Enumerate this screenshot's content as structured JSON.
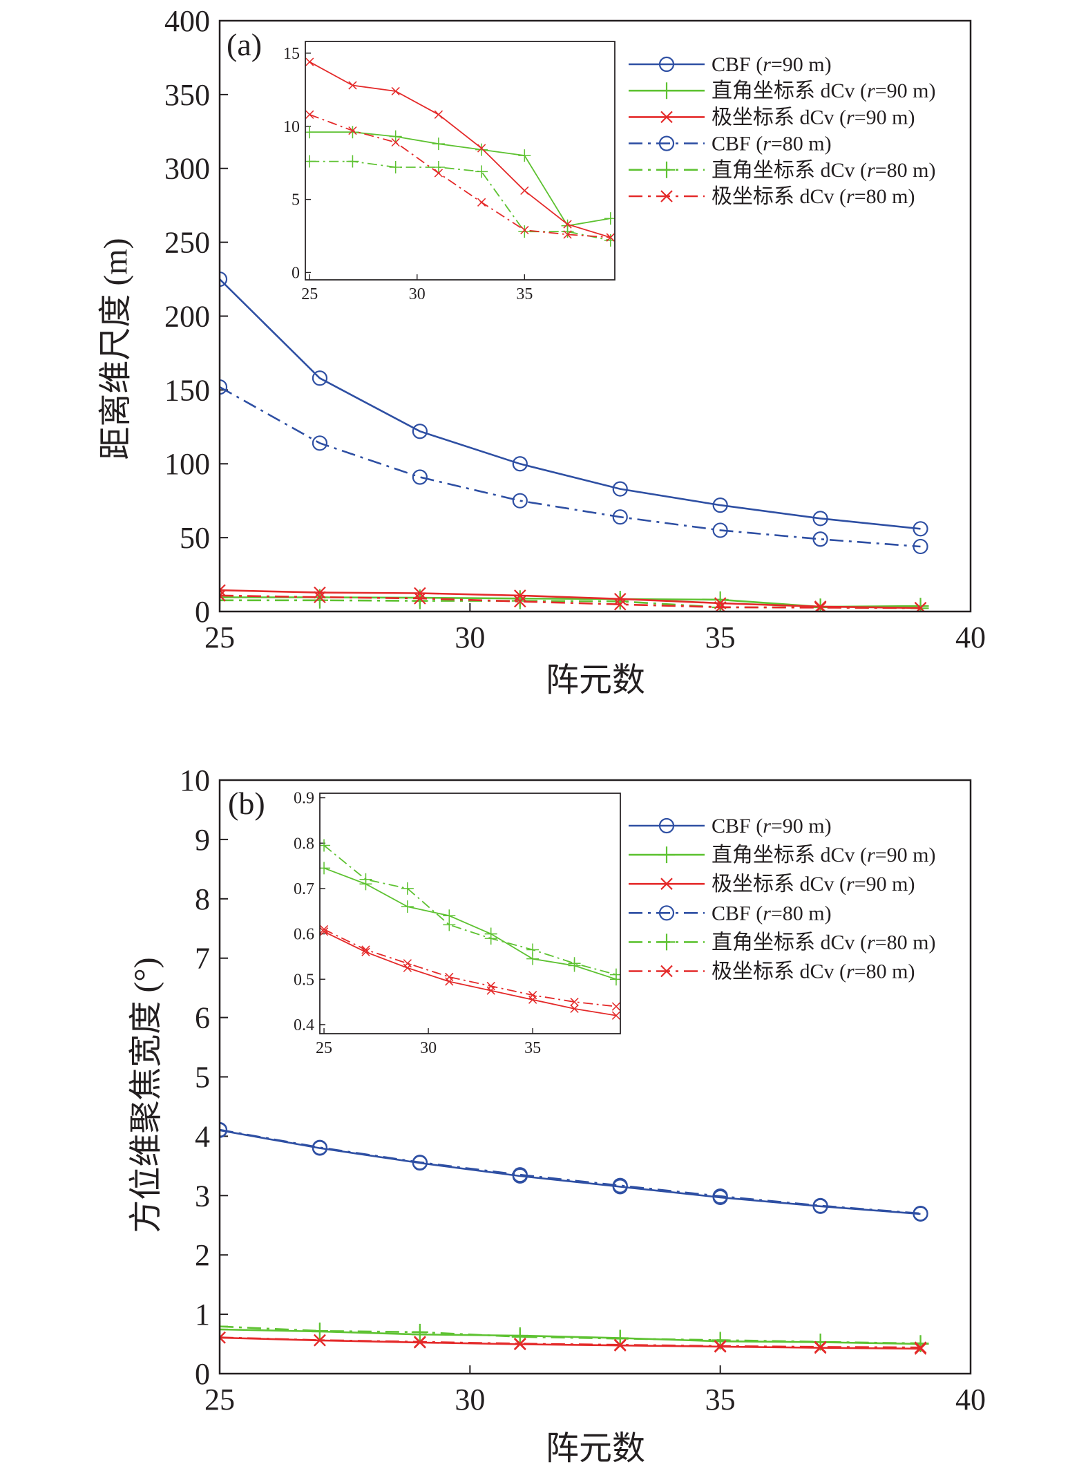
{
  "colors": {
    "blue": "#2e4fa3",
    "green": "#5ec232",
    "red": "#e42a2a",
    "axis": "#231f20"
  },
  "markers": {
    "CBF": "circle-icon",
    "rect": "plus-icon",
    "polar": "cross-icon"
  },
  "chart_data": [
    {
      "id": "a",
      "type": "line",
      "panel_label": "(a)",
      "xlabel": "阵元数",
      "ylabel": "距离维尺度 (m)",
      "xlim": [
        25,
        40
      ],
      "ylim": [
        0,
        400
      ],
      "xticks": [
        "25",
        "30",
        "35",
        "40"
      ],
      "yticks": [
        "0",
        "50",
        "100",
        "150",
        "200",
        "250",
        "300",
        "350",
        "400"
      ],
      "x": [
        25,
        27,
        29,
        31,
        33,
        35,
        37,
        39
      ],
      "legend_position": "top-right",
      "series": [
        {
          "name": "CBF (r=90 m)",
          "name_pre": "CBF (",
          "name_r": "r",
          "name_post": "=90 m)",
          "key": "blue",
          "marker": "circle",
          "dash": "solid",
          "values": [
            225,
            158,
            122,
            100,
            83,
            72,
            63,
            56
          ]
        },
        {
          "name": "直角坐标系 dCv (r=90 m)",
          "name_pre": "直角坐标系 dCv (",
          "name_r": "r",
          "name_post": "=90 m)",
          "key": "green",
          "marker": "plus",
          "dash": "solid",
          "values": [
            9.6,
            9.6,
            9.3,
            8.8,
            8.4,
            8.0,
            3.2,
            3.7
          ]
        },
        {
          "name": "极坐标系 dCv (r=90 m)",
          "name_pre": "极坐标系 dCv (",
          "name_r": "r",
          "name_post": "=90 m)",
          "key": "red",
          "marker": "cross",
          "dash": "solid",
          "values": [
            14.4,
            12.8,
            12.4,
            10.8,
            8.5,
            5.6,
            3.3,
            2.4
          ]
        },
        {
          "name": "CBF (r=80 m)",
          "name_pre": "CBF (",
          "name_r": "r",
          "name_post": "=80 m)",
          "key": "blue",
          "marker": "circle",
          "dash": "dashdot",
          "values": [
            152,
            114,
            91,
            75,
            64,
            55,
            49,
            44
          ]
        },
        {
          "name": "直角坐标系 dCv (r=80 m)",
          "name_pre": "直角坐标系 dCv (",
          "name_r": "r",
          "name_post": "=80 m)",
          "key": "green",
          "marker": "plus",
          "dash": "dashdot",
          "values": [
            7.6,
            7.6,
            7.2,
            7.2,
            6.9,
            2.8,
            2.8,
            2.2
          ]
        },
        {
          "name": "极坐标系 dCv (r=80 m)",
          "name_pre": "极坐标系 dCv (",
          "name_r": "r",
          "name_post": "=80 m)",
          "key": "red",
          "marker": "cross",
          "dash": "dashdot",
          "values": [
            10.8,
            9.7,
            8.9,
            6.8,
            4.8,
            2.9,
            2.6,
            2.4
          ]
        }
      ],
      "inset": {
        "xlim": [
          24.8,
          39.2
        ],
        "ylim": [
          -0.5,
          15.8
        ],
        "xticks": [
          "25",
          "30",
          "35"
        ],
        "yticks": [
          "0",
          "5",
          "10",
          "15"
        ]
      }
    },
    {
      "id": "b",
      "type": "line",
      "panel_label": "(b)",
      "xlabel": "阵元数",
      "ylabel": "方位维聚焦宽度 (°)",
      "xlim": [
        25,
        40
      ],
      "ylim": [
        0,
        10
      ],
      "xticks": [
        "25",
        "30",
        "35",
        "40"
      ],
      "yticks": [
        "0",
        "1",
        "2",
        "3",
        "4",
        "5",
        "6",
        "7",
        "8",
        "9",
        "10"
      ],
      "x": [
        25,
        27,
        29,
        31,
        33,
        35,
        37,
        39
      ],
      "legend_position": "top-right",
      "series": [
        {
          "name": "CBF (r=90 m)",
          "name_pre": "CBF (",
          "name_r": "r",
          "name_post": "=90 m)",
          "key": "blue",
          "marker": "circle",
          "dash": "solid",
          "values": [
            4.1,
            3.8,
            3.55,
            3.33,
            3.15,
            2.97,
            2.82,
            2.69
          ]
        },
        {
          "name": "直角坐标系 dCv (r=90 m)",
          "name_pre": "直角坐标系 dCv (",
          "name_r": "r",
          "name_post": "=90 m)",
          "key": "green",
          "marker": "plus",
          "dash": "solid",
          "values": [
            0.745,
            0.71,
            0.66,
            0.64,
            0.6,
            0.545,
            0.53,
            0.5
          ]
        },
        {
          "name": "极坐标系 dCv (r=90 m)",
          "name_pre": "极坐标系 dCv (",
          "name_r": "r",
          "name_post": "=90 m)",
          "key": "red",
          "marker": "cross",
          "dash": "solid",
          "values": [
            0.605,
            0.56,
            0.525,
            0.495,
            0.475,
            0.455,
            0.435,
            0.42
          ]
        },
        {
          "name": "CBF (r=80 m)",
          "name_pre": "CBF (",
          "name_r": "r",
          "name_post": "=80 m)",
          "key": "blue",
          "marker": "circle",
          "dash": "dashdot",
          "values": [
            4.11,
            3.81,
            3.56,
            3.35,
            3.17,
            2.99,
            2.83,
            2.7
          ]
        },
        {
          "name": "直角坐标系 dCv (r=80 m)",
          "name_pre": "直角坐标系 dCv (",
          "name_r": "r",
          "name_post": "=80 m)",
          "key": "green",
          "marker": "plus",
          "dash": "dashdot",
          "values": [
            0.795,
            0.72,
            0.7,
            0.62,
            0.59,
            0.565,
            0.535,
            0.51
          ]
        },
        {
          "name": "极坐标系 dCv (r=80 m)",
          "name_pre": "极坐标系 dCv (",
          "name_r": "r",
          "name_post": "=80 m)",
          "key": "red",
          "marker": "cross",
          "dash": "dashdot",
          "values": [
            0.61,
            0.565,
            0.535,
            0.505,
            0.485,
            0.465,
            0.45,
            0.44
          ]
        }
      ],
      "inset": {
        "xlim": [
          24.8,
          39.2
        ],
        "ylim": [
          0.38,
          0.91
        ],
        "xticks": [
          "25",
          "30",
          "35"
        ],
        "yticks": [
          "0.4",
          "0.5",
          "0.6",
          "0.7",
          "0.8",
          "0.9"
        ]
      }
    }
  ]
}
